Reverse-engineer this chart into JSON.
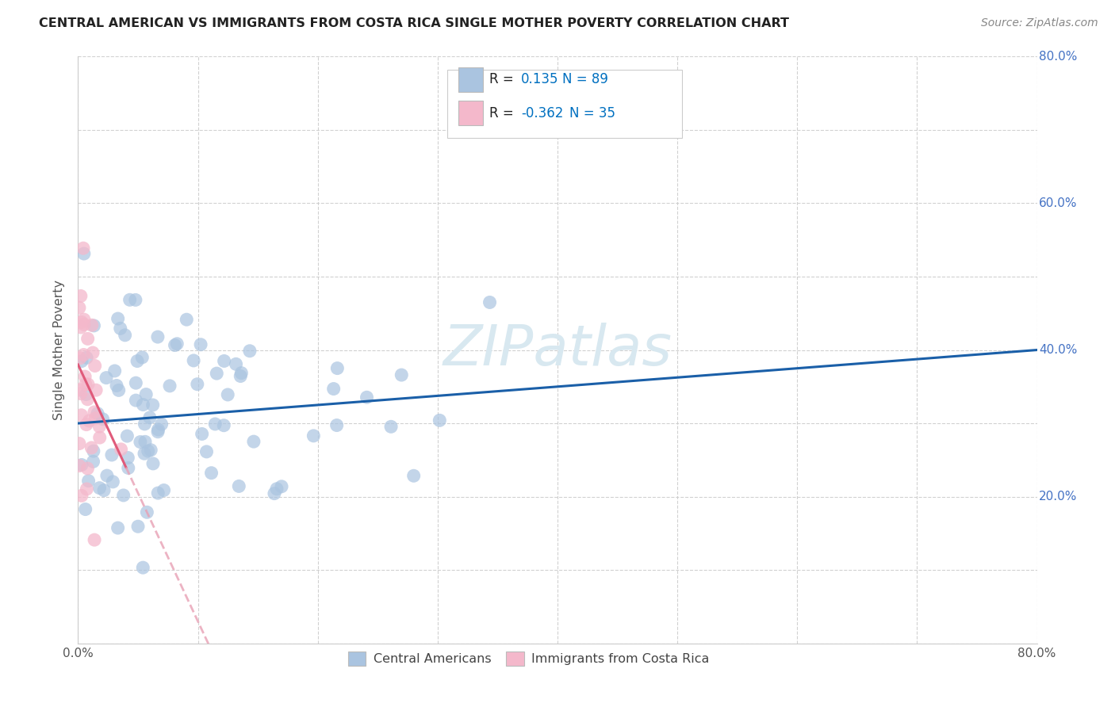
{
  "title": "CENTRAL AMERICAN VS IMMIGRANTS FROM COSTA RICA SINGLE MOTHER POVERTY CORRELATION CHART",
  "source": "Source: ZipAtlas.com",
  "ylabel": "Single Mother Poverty",
  "xlim": [
    0,
    0.8
  ],
  "ylim": [
    0,
    0.8
  ],
  "blue_R": 0.135,
  "blue_N": 89,
  "pink_R": -0.362,
  "pink_N": 35,
  "blue_color": "#aac4e0",
  "pink_color": "#f4b8cb",
  "blue_line_color": "#1a5fa8",
  "pink_line_color": "#e05a7a",
  "pink_dash_color": "#e8a0b4",
  "watermark_color": "#d8e8f0",
  "background_color": "#ffffff",
  "grid_color": "#cccccc",
  "right_axis_color": "#4472c4",
  "legend_r_color": "#0070c0",
  "legend_n_color": "#0070c0"
}
